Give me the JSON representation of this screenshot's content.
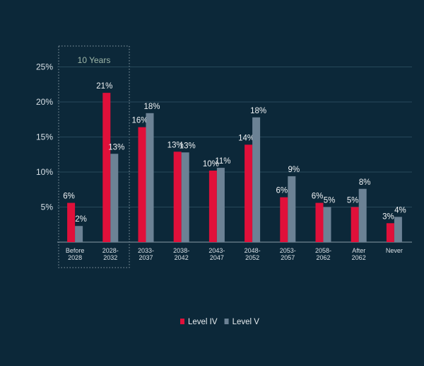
{
  "chart_data": {
    "type": "bar",
    "annotation": "10 Years",
    "categories": [
      "Before\n2028",
      "2028-\n2032",
      "2033-\n2037",
      "2038-\n2042",
      "2043-\n2047",
      "2048-\n2052",
      "2053-\n2057",
      "2058-\n2062",
      "After\n2062",
      "Never"
    ],
    "series": [
      {
        "name": "Level IV",
        "color": "#e0103a",
        "values": [
          5.6,
          21.3,
          16.4,
          12.9,
          10.2,
          13.9,
          6.4,
          5.6,
          5.0,
          2.7
        ],
        "value_labels": [
          "6%",
          "21%",
          "16%",
          "13%",
          "10%",
          "14%",
          "6%",
          "6%",
          "5%",
          "3%"
        ]
      },
      {
        "name": "Level V",
        "color": "#6c8295",
        "values": [
          2.3,
          12.6,
          18.4,
          12.8,
          10.6,
          17.8,
          9.4,
          5.0,
          7.6,
          3.6
        ],
        "value_labels": [
          "2%",
          "13%",
          "18%",
          "13%",
          "11%",
          "18%",
          "9%",
          "5%",
          "8%",
          "4%"
        ]
      }
    ],
    "ylim": [
      0,
      25
    ],
    "yticks": [
      {
        "value": 5,
        "label": "5%"
      },
      {
        "value": 10,
        "label": "10%"
      },
      {
        "value": 15,
        "label": "15%"
      },
      {
        "value": 20,
        "label": "20%"
      },
      {
        "value": 25,
        "label": "25%"
      }
    ],
    "grid": true,
    "legend": "bottom"
  }
}
